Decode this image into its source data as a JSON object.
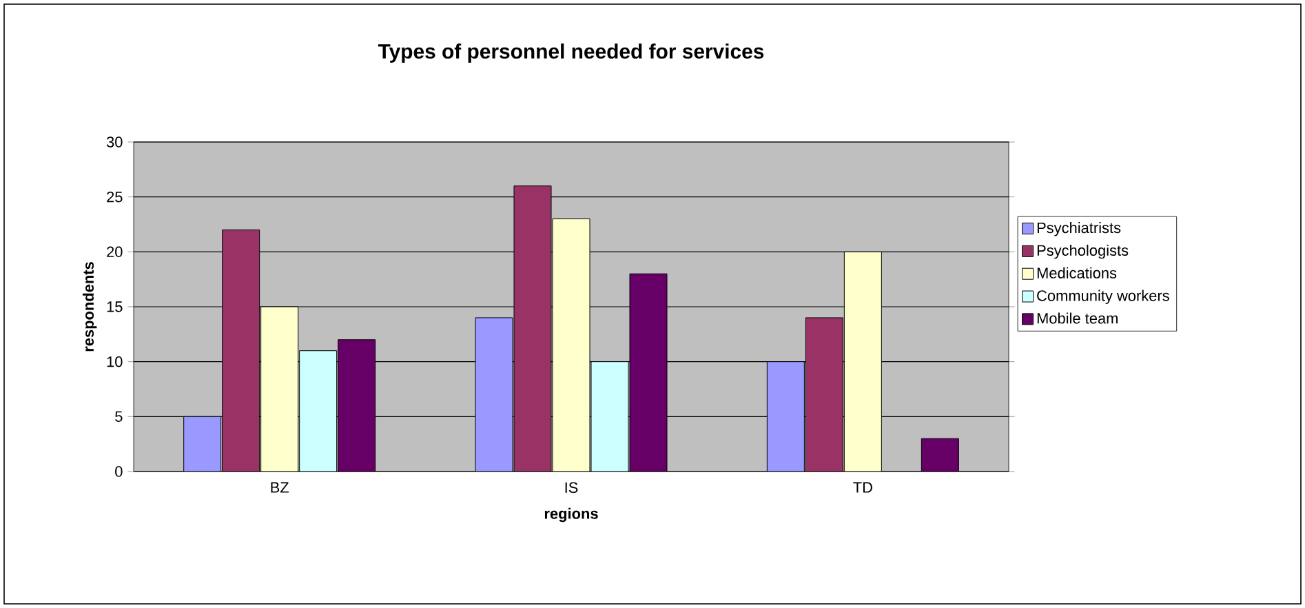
{
  "chart_data": {
    "type": "bar",
    "title": "Types of personnel needed for services",
    "xlabel": "regions",
    "ylabel": "respondents",
    "categories": [
      "BZ",
      "IS",
      "TD"
    ],
    "series": [
      {
        "name": "Psychiatrists",
        "color": "#9999ff",
        "values": [
          5,
          14,
          10
        ]
      },
      {
        "name": "Psychologists",
        "color": "#993366",
        "values": [
          22,
          26,
          14
        ]
      },
      {
        "name": "Medications",
        "color": "#ffffcc",
        "values": [
          15,
          23,
          20
        ]
      },
      {
        "name": "Community workers",
        "color": "#ccffff",
        "values": [
          11,
          10,
          null
        ]
      },
      {
        "name": "Mobile team",
        "color": "#660066",
        "values": [
          12,
          18,
          3
        ]
      }
    ],
    "ylim": [
      0,
      30
    ],
    "yticks": [
      0,
      5,
      10,
      15,
      20,
      25,
      30
    ],
    "grid": "y",
    "legend": "right"
  }
}
